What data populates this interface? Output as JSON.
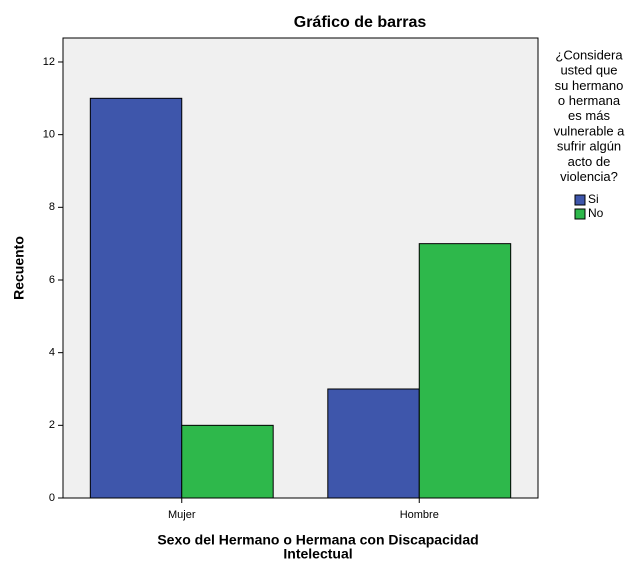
{
  "chart_data": {
    "type": "bar",
    "title": "Gráfico de barras",
    "ylabel": "Recuento",
    "xlabel": [
      "Sexo del Hermano o Hermana con Discapacidad",
      "Intelectual"
    ],
    "legend_title": [
      "¿Considera",
      "usted que",
      "su hermano",
      "o hermana",
      "es más",
      "vulnerable a",
      "sufrir algún",
      "acto de",
      "violencia?"
    ],
    "categories": [
      "Mujer",
      "Hombre"
    ],
    "series": [
      {
        "name": "Si",
        "color": "#3e56ab",
        "values": [
          11,
          3
        ]
      },
      {
        "name": "No",
        "color": "#2eb84b",
        "values": [
          2,
          7
        ]
      }
    ],
    "ylim": [
      0,
      12.66
    ],
    "yticks": [
      0,
      2,
      4,
      6,
      8,
      10,
      12
    ],
    "legend": "right"
  }
}
